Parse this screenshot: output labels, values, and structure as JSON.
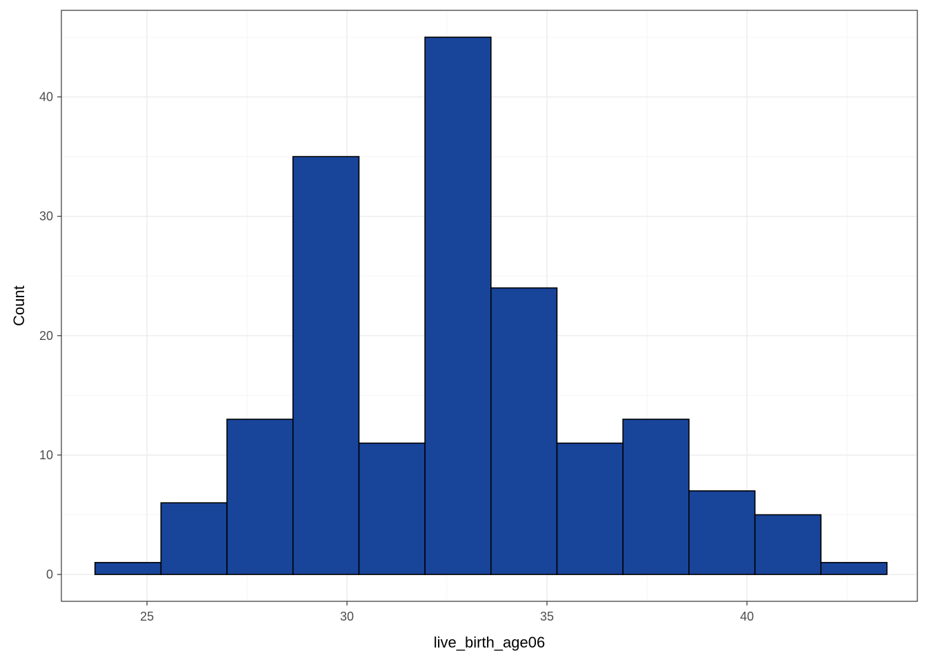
{
  "chart_data": {
    "type": "bar",
    "title": "",
    "xlabel": "live_birth_age06",
    "ylabel": "Count",
    "xlim": [
      22.86,
      44.26
    ],
    "ylim": [
      -2.25,
      47.25
    ],
    "x_ticks": [
      25,
      30,
      35,
      40
    ],
    "y_ticks": [
      0,
      10,
      20,
      30,
      40
    ],
    "bins": [
      {
        "x0": 23.7,
        "x1": 25.35,
        "count": 1
      },
      {
        "x0": 25.35,
        "x1": 27.0,
        "count": 6
      },
      {
        "x0": 27.0,
        "x1": 28.65,
        "count": 13
      },
      {
        "x0": 28.65,
        "x1": 30.3,
        "count": 35
      },
      {
        "x0": 30.3,
        "x1": 31.95,
        "count": 11
      },
      {
        "x0": 31.95,
        "x1": 33.6,
        "count": 45
      },
      {
        "x0": 33.6,
        "x1": 35.25,
        "count": 24
      },
      {
        "x0": 35.25,
        "x1": 36.9,
        "count": 11
      },
      {
        "x0": 36.9,
        "x1": 38.55,
        "count": 13
      },
      {
        "x0": 38.55,
        "x1": 40.2,
        "count": 7
      },
      {
        "x0": 40.2,
        "x1": 41.85,
        "count": 5
      },
      {
        "x0": 41.85,
        "x1": 43.5,
        "count": 1
      }
    ],
    "grid": true,
    "colors": {
      "bar_fill": "#18449A",
      "bar_stroke": "#000000",
      "panel_border": "#333333",
      "grid_major": "#EBEBEB",
      "grid_minor": "#F4F4F4",
      "background": "#FFFFFF"
    }
  }
}
